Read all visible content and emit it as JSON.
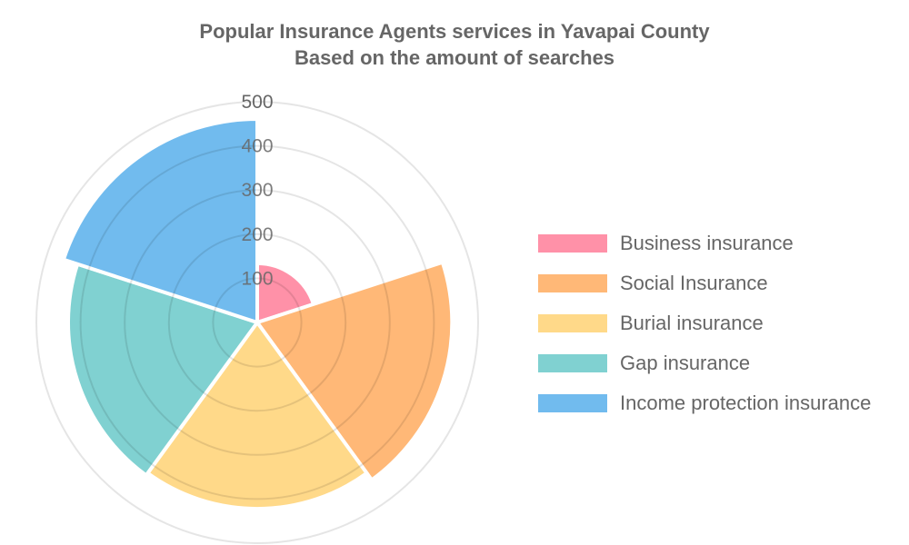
{
  "title": {
    "line1": "Popular Insurance Agents services in Yavapai County",
    "line2": "Based on the amount of searches"
  },
  "chart_data": {
    "type": "polarArea",
    "title": "Popular Insurance Agents services in Yavapai County — Based on the amount of searches",
    "categories": [
      "Business insurance",
      "Social Insurance",
      "Burial insurance",
      "Gap insurance",
      "Income protection insurance"
    ],
    "values": [
      134,
      441,
      422,
      428,
      461
    ],
    "colors": [
      "#ff91a8",
      "#ffb877",
      "#ffd989",
      "#80d1d1",
      "#71bbee"
    ],
    "radial_ticks": [
      100,
      200,
      300,
      400,
      500
    ],
    "rlim": [
      0,
      500
    ],
    "legend_position": "right",
    "grid": true
  },
  "legend": [
    {
      "label": "Business insurance",
      "color": "#ff91a8"
    },
    {
      "label": "Social Insurance",
      "color": "#ffb877"
    },
    {
      "label": "Burial insurance",
      "color": "#ffd989"
    },
    {
      "label": "Gap insurance",
      "color": "#80d1d1"
    },
    {
      "label": "Income protection insurance",
      "color": "#71bbee"
    }
  ]
}
